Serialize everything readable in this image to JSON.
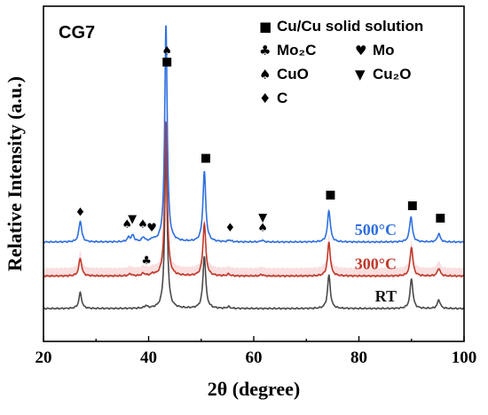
{
  "chart_data": {
    "type": "line",
    "panel_label": "CG7",
    "xlabel": "2θ (degree)",
    "ylabel": "Relative Intensity (a.u.)",
    "xlim": [
      20,
      100
    ],
    "xticks": [
      "20",
      "40",
      "60",
      "80",
      "100"
    ],
    "grid": false,
    "legend": {
      "placement": "top-right",
      "entries": [
        {
          "symbol": "■",
          "label": "Cu/Cu solid solution"
        },
        {
          "symbol": "♣",
          "label": "Mo₂C"
        },
        {
          "symbol": "♥",
          "label": "Mo"
        },
        {
          "symbol": "♠",
          "label": "CuO"
        },
        {
          "symbol": "▼",
          "label": "Cu₂O"
        },
        {
          "symbol": "♦",
          "label": "C"
        }
      ]
    },
    "series": [
      {
        "name": "RT",
        "color": "#4a4a4a",
        "baseline": 0.0,
        "peaks": [
          [
            27.0,
            0.45
          ],
          [
            39.5,
            0.07
          ],
          [
            43.3,
            4.6
          ],
          [
            50.6,
            1.5
          ],
          [
            55.2,
            0.05
          ],
          [
            74.3,
            0.95
          ],
          [
            90.0,
            0.85
          ],
          [
            95.2,
            0.25
          ]
        ]
      },
      {
        "name": "300°C",
        "color": "#c0392b",
        "baseline": 0.93,
        "peaks": [
          [
            27.0,
            0.5
          ],
          [
            36.5,
            0.06
          ],
          [
            39.0,
            0.07
          ],
          [
            40.8,
            0.05
          ],
          [
            43.3,
            4.4
          ],
          [
            50.6,
            1.5
          ],
          [
            55.2,
            0.05
          ],
          [
            61.5,
            0.04
          ],
          [
            74.3,
            0.95
          ],
          [
            90.0,
            0.82
          ],
          [
            95.2,
            0.22
          ]
        ]
      },
      {
        "name": "500°C",
        "color": "#2e6fe0",
        "baseline": 1.9,
        "peaks": [
          [
            27.0,
            0.6
          ],
          [
            36.2,
            0.12
          ],
          [
            37.0,
            0.18
          ],
          [
            39.0,
            0.12
          ],
          [
            40.8,
            0.06
          ],
          [
            43.3,
            6.2
          ],
          [
            50.6,
            2.0
          ],
          [
            55.4,
            0.05
          ],
          [
            61.6,
            0.05
          ],
          [
            74.3,
            0.9
          ],
          [
            89.9,
            0.72
          ],
          [
            95.2,
            0.24
          ]
        ]
      }
    ],
    "peak_markers": [
      {
        "symbol": "♦",
        "x": 27.0,
        "y": 2.65
      },
      {
        "symbol": "♠",
        "x": 35.9,
        "y": 2.3
      },
      {
        "symbol": "▼",
        "x": 36.9,
        "y": 2.45
      },
      {
        "symbol": "♠",
        "x": 38.9,
        "y": 2.3
      },
      {
        "symbol": "♥",
        "x": 40.6,
        "y": 2.2
      },
      {
        "symbol": "♣",
        "x": 39.6,
        "y": 1.27
      },
      {
        "symbol": "■",
        "x": 43.5,
        "y": 6.95
      },
      {
        "symbol": "♠",
        "x": 43.5,
        "y": 7.25
      },
      {
        "symbol": "■",
        "x": 50.9,
        "y": 4.2
      },
      {
        "symbol": "♦",
        "x": 55.5,
        "y": 2.2
      },
      {
        "symbol": "▼",
        "x": 61.7,
        "y": 2.5
      },
      {
        "symbol": "♠",
        "x": 61.7,
        "y": 2.2
      },
      {
        "symbol": "■",
        "x": 74.6,
        "y": 3.15
      },
      {
        "symbol": "■",
        "x": 90.2,
        "y": 2.85
      },
      {
        "symbol": "■",
        "x": 95.5,
        "y": 2.5
      }
    ]
  }
}
